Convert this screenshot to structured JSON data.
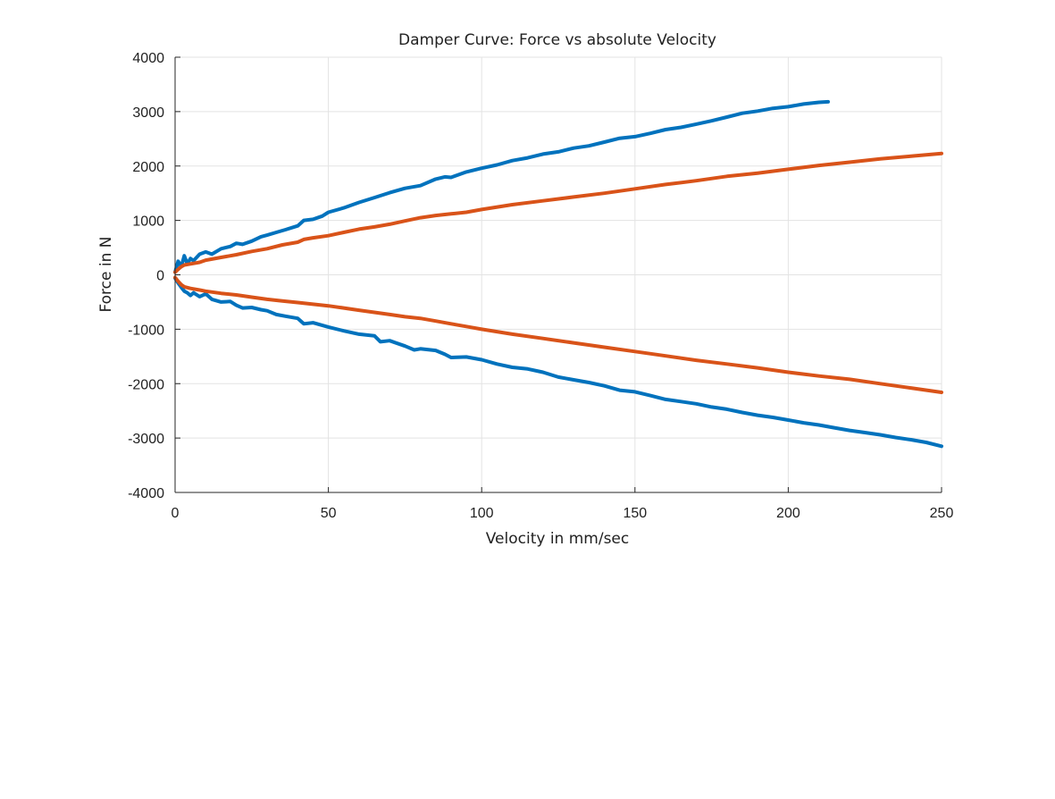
{
  "chart_data": {
    "type": "line",
    "title": "Damper Curve: Force vs absolute Velocity",
    "xlabel": "Velocity in mm/sec",
    "ylabel": "Force in N",
    "xlim": [
      0,
      250
    ],
    "ylim": [
      -4000,
      4000
    ],
    "xticks": [
      0,
      50,
      100,
      150,
      200,
      250
    ],
    "yticks": [
      -4000,
      -3000,
      -2000,
      -1000,
      0,
      1000,
      2000,
      3000,
      4000
    ],
    "xtick_labels": [
      "0",
      "50",
      "100",
      "150",
      "200",
      "250"
    ],
    "ytick_labels": [
      "-4000",
      "-3000",
      "-2000",
      "-1000",
      "0",
      "1000",
      "2000",
      "3000",
      "4000"
    ],
    "grid": true,
    "series": [
      {
        "color": "#0072BD",
        "x": [
          0,
          1,
          2,
          3,
          4,
          5,
          6,
          8,
          10,
          12,
          15,
          18,
          20,
          22,
          25,
          28,
          30,
          33,
          36,
          40,
          42,
          45,
          48,
          50,
          55,
          60,
          65,
          70,
          75,
          80,
          85,
          88,
          90,
          95,
          100,
          105,
          110,
          115,
          120,
          125,
          130,
          135,
          140,
          145,
          150,
          155,
          160,
          165,
          170,
          175,
          180,
          185,
          190,
          195,
          200,
          205,
          210,
          213
        ],
        "y": [
          50,
          250,
          150,
          350,
          200,
          300,
          260,
          380,
          420,
          380,
          480,
          520,
          580,
          560,
          620,
          700,
          730,
          780,
          830,
          900,
          1000,
          1020,
          1080,
          1150,
          1230,
          1330,
          1420,
          1510,
          1590,
          1640,
          1760,
          1800,
          1790,
          1890,
          1960,
          2020,
          2100,
          2150,
          2220,
          2260,
          2330,
          2370,
          2440,
          2510,
          2540,
          2600,
          2670,
          2710,
          2770,
          2830,
          2900,
          2970,
          3010,
          3060,
          3090,
          3140,
          3170,
          3180
        ]
      },
      {
        "color": "#0072BD",
        "x": [
          0,
          1,
          2,
          3,
          4,
          5,
          6,
          8,
          10,
          12,
          15,
          18,
          20,
          22,
          25,
          28,
          30,
          33,
          36,
          40,
          42,
          45,
          50,
          55,
          60,
          65,
          67,
          70,
          75,
          78,
          80,
          85,
          88,
          90,
          95,
          100,
          105,
          110,
          115,
          120,
          125,
          130,
          135,
          140,
          145,
          150,
          155,
          160,
          165,
          170,
          175,
          180,
          185,
          190,
          195,
          200,
          205,
          210,
          215,
          220,
          225,
          230,
          235,
          240,
          245,
          250
        ],
        "y": [
          -60,
          -150,
          -230,
          -300,
          -330,
          -380,
          -330,
          -400,
          -350,
          -450,
          -500,
          -490,
          -560,
          -610,
          -600,
          -640,
          -660,
          -730,
          -760,
          -800,
          -900,
          -880,
          -960,
          -1030,
          -1090,
          -1120,
          -1230,
          -1210,
          -1310,
          -1380,
          -1360,
          -1390,
          -1460,
          -1520,
          -1510,
          -1560,
          -1640,
          -1700,
          -1730,
          -1790,
          -1880,
          -1930,
          -1980,
          -2040,
          -2120,
          -2150,
          -2220,
          -2290,
          -2330,
          -2370,
          -2430,
          -2470,
          -2530,
          -2580,
          -2620,
          -2670,
          -2720,
          -2760,
          -2810,
          -2860,
          -2900,
          -2940,
          -2990,
          -3030,
          -3080,
          -3150
        ]
      },
      {
        "color": "#D95319",
        "x": [
          0,
          1,
          2,
          3,
          5,
          8,
          10,
          15,
          20,
          25,
          30,
          35,
          40,
          42,
          45,
          50,
          55,
          60,
          65,
          70,
          75,
          80,
          85,
          90,
          95,
          100,
          110,
          120,
          130,
          140,
          150,
          160,
          170,
          180,
          190,
          200,
          210,
          220,
          230,
          240,
          250
        ],
        "y": [
          50,
          100,
          150,
          180,
          200,
          230,
          270,
          320,
          370,
          430,
          480,
          550,
          600,
          650,
          680,
          720,
          780,
          840,
          880,
          930,
          990,
          1050,
          1090,
          1120,
          1150,
          1200,
          1290,
          1360,
          1430,
          1500,
          1580,
          1660,
          1730,
          1810,
          1870,
          1940,
          2010,
          2070,
          2130,
          2180,
          2230
        ]
      },
      {
        "color": "#D95319",
        "x": [
          0,
          1,
          2,
          3,
          5,
          8,
          10,
          15,
          20,
          25,
          30,
          35,
          40,
          45,
          50,
          55,
          60,
          65,
          70,
          75,
          80,
          85,
          90,
          95,
          100,
          110,
          120,
          130,
          140,
          150,
          160,
          170,
          180,
          190,
          200,
          210,
          220,
          230,
          240,
          250
        ],
        "y": [
          -50,
          -120,
          -180,
          -220,
          -250,
          -280,
          -300,
          -340,
          -370,
          -410,
          -450,
          -480,
          -510,
          -540,
          -570,
          -610,
          -650,
          -690,
          -730,
          -770,
          -800,
          -850,
          -900,
          -950,
          -1000,
          -1090,
          -1170,
          -1250,
          -1330,
          -1410,
          -1490,
          -1570,
          -1640,
          -1710,
          -1790,
          -1860,
          -1920,
          -2000,
          -2080,
          -2160
        ]
      }
    ]
  }
}
